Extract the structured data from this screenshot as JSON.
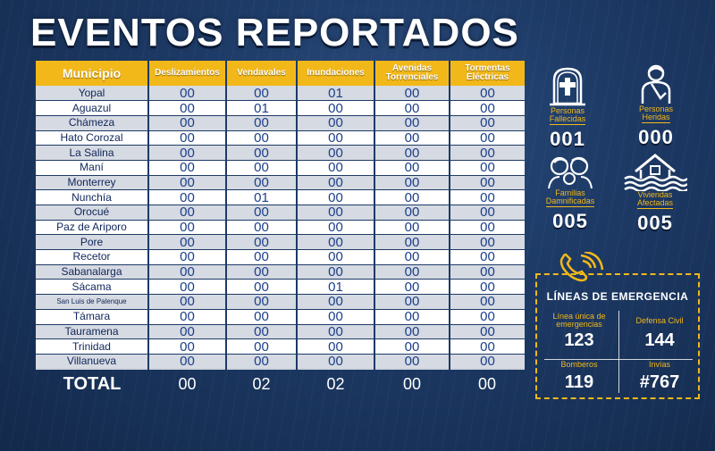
{
  "title": "EVENTOS REPORTADOS",
  "table": {
    "headers": [
      "Municipio",
      "Deslizamientos",
      "Vendavales",
      "Inundaciones",
      "Avenidas Torrenciales",
      "Tormentas Eléctricas"
    ],
    "rows": [
      {
        "municipio": "Yopal",
        "values": [
          "00",
          "00",
          "01",
          "00",
          "00"
        ]
      },
      {
        "municipio": "Aguazul",
        "values": [
          "00",
          "01",
          "00",
          "00",
          "00"
        ]
      },
      {
        "municipio": "Chámeza",
        "values": [
          "00",
          "00",
          "00",
          "00",
          "00"
        ]
      },
      {
        "municipio": "Hato Corozal",
        "values": [
          "00",
          "00",
          "00",
          "00",
          "00"
        ]
      },
      {
        "municipio": "La Salina",
        "values": [
          "00",
          "00",
          "00",
          "00",
          "00"
        ]
      },
      {
        "municipio": "Maní",
        "values": [
          "00",
          "00",
          "00",
          "00",
          "00"
        ]
      },
      {
        "municipio": "Monterrey",
        "values": [
          "00",
          "00",
          "00",
          "00",
          "00"
        ]
      },
      {
        "municipio": "Nunchía",
        "values": [
          "00",
          "01",
          "00",
          "00",
          "00"
        ]
      },
      {
        "municipio": "Orocué",
        "values": [
          "00",
          "00",
          "00",
          "00",
          "00"
        ]
      },
      {
        "municipio": "Paz de Ariporo",
        "values": [
          "00",
          "00",
          "00",
          "00",
          "00"
        ]
      },
      {
        "municipio": "Pore",
        "values": [
          "00",
          "00",
          "00",
          "00",
          "00"
        ]
      },
      {
        "municipio": "Recetor",
        "values": [
          "00",
          "00",
          "00",
          "00",
          "00"
        ]
      },
      {
        "municipio": "Sabanalarga",
        "values": [
          "00",
          "00",
          "00",
          "00",
          "00"
        ]
      },
      {
        "municipio": "Sácama",
        "values": [
          "00",
          "00",
          "01",
          "00",
          "00"
        ]
      },
      {
        "municipio": "San Luis de Palenque",
        "values": [
          "00",
          "00",
          "00",
          "00",
          "00"
        ]
      },
      {
        "municipio": "Támara",
        "values": [
          "00",
          "00",
          "00",
          "00",
          "00"
        ]
      },
      {
        "municipio": "Tauramena",
        "values": [
          "00",
          "00",
          "00",
          "00",
          "00"
        ]
      },
      {
        "municipio": "Trinidad",
        "values": [
          "00",
          "00",
          "00",
          "00",
          "00"
        ]
      },
      {
        "municipio": "Villanueva",
        "values": [
          "00",
          "00",
          "00",
          "00",
          "00"
        ]
      }
    ],
    "total": {
      "label": "TOTAL",
      "values": [
        "00",
        "02",
        "02",
        "00",
        "00"
      ]
    }
  },
  "stats": {
    "fallecidas": {
      "label1": "Personas",
      "label2": "Fallecidas",
      "value": "001",
      "icon": "tombstone-icon"
    },
    "heridas": {
      "label1": "Personas",
      "label2": "Heridas",
      "value": "000",
      "icon": "injured-person-icon"
    },
    "familias": {
      "label1": "Familias",
      "label2": "Damnificadas",
      "value": "005",
      "icon": "family-icon"
    },
    "viviendas": {
      "label1": "Viviendas",
      "label2": "Afectadas",
      "value": "005",
      "icon": "flooded-house-icon"
    }
  },
  "emergencia": {
    "title": "LÍNEAS DE EMERGENCIA",
    "lines": [
      {
        "label1": "Línea única de",
        "label2": "emergencias",
        "value": "123"
      },
      {
        "label1": "Defensa Civil",
        "label2": "",
        "value": "144"
      },
      {
        "label1": "Bomberos",
        "label2": "",
        "value": "119"
      },
      {
        "label1": "Invías",
        "label2": "",
        "value": "#767"
      }
    ]
  },
  "colors": {
    "accent": "#f2b81a",
    "background": "#1d3a66",
    "row_alt": "#d6dae2",
    "cell_text": "#1b3f8a"
  }
}
